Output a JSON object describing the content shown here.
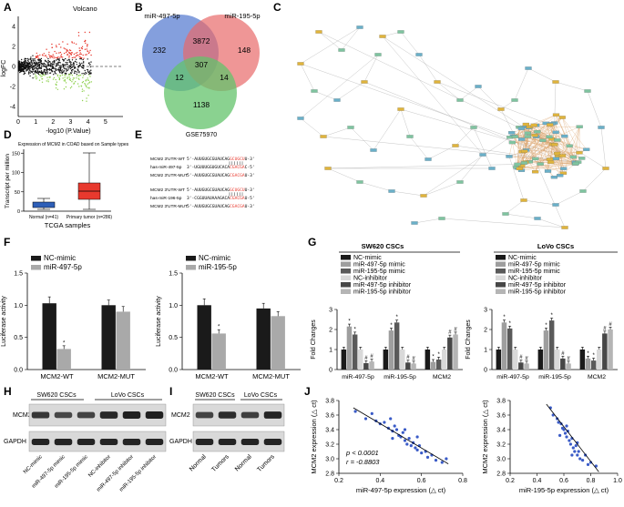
{
  "panels": {
    "A": {
      "label": "A",
      "title": "Volcano",
      "xlabel": "-log10 (P.Value)",
      "ylabel": "logFC",
      "xticks": [
        "0",
        "1",
        "2",
        "3",
        "4",
        "5"
      ],
      "yticks": [
        "-4",
        "-2",
        "0",
        "2",
        "4"
      ],
      "colors": {
        "up": "#e8392e",
        "down": "#8fd14f",
        "ns": "#111111"
      }
    },
    "B": {
      "label": "B",
      "sets": [
        "miR-497-5p",
        "miR-195-5p",
        "GSE75970"
      ],
      "counts": {
        "only_497": "232",
        "only_195": "148",
        "both_497_195": "3872",
        "all_three": "307",
        "497_gse": "12",
        "195_gse": "14",
        "only_gse": "1138"
      },
      "colors": {
        "miR-497-5p": "#5b7fd1",
        "miR-195-5p": "#e86a6a",
        "GSE75970": "#63c36b"
      }
    },
    "C": {
      "label": "C"
    },
    "D": {
      "label": "D",
      "title": "Expression of MCM2 in COAD based on Sample types",
      "ylabel": "Transcript per million",
      "xlabel": "TCGA samples",
      "yticks": [
        "0",
        "50",
        "100",
        "150"
      ],
      "groups": [
        {
          "name": "Normal (n=41)",
          "color": "#2e5fb8"
        },
        {
          "name": "Primary tumor (n=286)",
          "color": "#e8392e"
        }
      ]
    },
    "E": {
      "label": "E",
      "rows": [
        {
          "name": "MCM2 3'UTR-WT",
          "seq": "5'-AUUGUGCGUAUCAGGCUGCUU-3'",
          "hl": "GCUGCU"
        },
        {
          "name": "has-miR-497-5p",
          "seq": "3'-UGUUUGGUGUCACACGACGAC-5'",
          "hl": "CGACGA"
        },
        {
          "name": "MCM2 3'UTR-MUT",
          "seq": "5'-AUUGUGCGUAUCAGCGACGAU-3'",
          "hl": "CGACGA"
        },
        {
          "name": "MCM2 3'UTR-WT",
          "seq": "5'-AUUGUGCGUAUCAGGCUGCUU-3'",
          "hl": "GCUGCU"
        },
        {
          "name": "has-miR-196-5p",
          "seq": "3'-CGGUUAUAAAGACACGACGAU-5'",
          "hl": "CGACGA"
        },
        {
          "name": "MCM2 3'UTR-MUT",
          "seq": "5'-AUUGUGCGUAUCAGCGACGAU-3'",
          "hl": "CGACGA"
        }
      ]
    },
    "F": {
      "label": "F",
      "ylabel": "Luciferase activity",
      "yticks": [
        "0.0",
        "0.5",
        "1.0",
        "1.5"
      ]
    },
    "G": {
      "label": "G",
      "ylabel": "Fold Changes",
      "yticks": [
        "0",
        "1",
        "2",
        "3"
      ],
      "left_title": "SW620 CSCs",
      "right_title": "LoVo CSCs"
    },
    "H": {
      "label": "H",
      "group1": "SW620 CSCs",
      "group2": "LoVo CSCs",
      "rows": [
        "MCM2",
        "GAPDH"
      ],
      "lanes": [
        "NC-mimic",
        "miR-497-5p mimic",
        "miR-195-5p mimic",
        "NC-inhibitor",
        "miR-497-5p inhibitor",
        "miR-195-5p inhibitor"
      ]
    },
    "I": {
      "label": "I",
      "group1": "SW620 CSCs",
      "group2": "LoVo CSCs",
      "rows": [
        "MCM2",
        "GAPDH"
      ],
      "lanes": [
        "Normal",
        "Tumors",
        "Normal",
        "Tumors"
      ]
    },
    "J": {
      "label": "J"
    }
  },
  "chart_data": [
    {
      "id": "F-left",
      "type": "bar",
      "categories": [
        "MCM2-WT",
        "MCM2-MUT"
      ],
      "series": [
        {
          "name": "NC-mimic",
          "values": [
            1.03,
            1.0
          ],
          "err": [
            0.1,
            0.08
          ],
          "color": "#1a1a1a"
        },
        {
          "name": "miR-497-5p",
          "values": [
            0.32,
            0.9
          ],
          "err": [
            0.05,
            0.08
          ],
          "color": "#a9a9a9"
        }
      ],
      "ylim": [
        0,
        1.5
      ],
      "stars": [
        "*",
        ""
      ]
    },
    {
      "id": "F-right",
      "type": "bar",
      "categories": [
        "MCM2-WT",
        "MCM2-MUT"
      ],
      "series": [
        {
          "name": "NC-mimic",
          "values": [
            1.0,
            0.95
          ],
          "err": [
            0.1,
            0.08
          ],
          "color": "#1a1a1a"
        },
        {
          "name": "miR-195-5p",
          "values": [
            0.56,
            0.83
          ],
          "err": [
            0.06,
            0.07
          ],
          "color": "#a9a9a9"
        }
      ],
      "ylim": [
        0,
        1.5
      ],
      "stars": [
        "*",
        ""
      ]
    },
    {
      "id": "G-SW620",
      "type": "bar",
      "categories": [
        "miR-497-5p",
        "miR-195-5p",
        "MCM2"
      ],
      "series": [
        {
          "name": "NC-mimic",
          "values": [
            1.0,
            1.0,
            1.0
          ],
          "color": "#1a1a1a",
          "mark": [
            "",
            "",
            ""
          ]
        },
        {
          "name": "miR-497-5p mimic",
          "values": [
            2.15,
            1.95,
            0.38
          ],
          "color": "#9e9e9e",
          "mark": [
            "*",
            "*",
            "*"
          ]
        },
        {
          "name": "miR-195-5p mimic",
          "values": [
            1.75,
            2.35,
            0.5
          ],
          "color": "#5a5a5a",
          "mark": [
            "*",
            "*",
            "*"
          ]
        },
        {
          "name": "NC-inhibitor",
          "values": [
            1.0,
            1.0,
            1.0
          ],
          "color": "#d9d9d9",
          "mark": [
            "",
            "",
            ""
          ]
        },
        {
          "name": "miR-497-5p inhibitor",
          "values": [
            0.32,
            0.35,
            1.6
          ],
          "color": "#474747",
          "mark": [
            "#",
            "#",
            "#"
          ]
        },
        {
          "name": "miR-195-5p inhibitor",
          "values": [
            0.4,
            0.3,
            1.75
          ],
          "color": "#b5b5b5",
          "mark": [
            "#",
            "#",
            "#"
          ]
        }
      ],
      "ylim": [
        0,
        3
      ]
    },
    {
      "id": "G-LoVo",
      "type": "bar",
      "categories": [
        "miR-497-5p",
        "miR-195-5p",
        "MCM2"
      ],
      "series": [
        {
          "name": "NC-mimic",
          "values": [
            1.0,
            1.0,
            1.0
          ],
          "color": "#1a1a1a",
          "mark": [
            "",
            "",
            ""
          ]
        },
        {
          "name": "miR-497-5p mimic",
          "values": [
            2.35,
            1.95,
            0.55
          ],
          "color": "#9e9e9e",
          "mark": [
            "*",
            "*",
            "*"
          ]
        },
        {
          "name": "miR-195-5p mimic",
          "values": [
            2.05,
            2.45,
            0.45
          ],
          "color": "#5a5a5a",
          "mark": [
            "*",
            "*",
            "*"
          ]
        },
        {
          "name": "NC-inhibitor",
          "values": [
            1.0,
            1.0,
            1.0
          ],
          "color": "#d9d9d9",
          "mark": [
            "",
            "",
            ""
          ]
        },
        {
          "name": "miR-497-5p inhibitor",
          "values": [
            0.35,
            0.55,
            1.8
          ],
          "color": "#474747",
          "mark": [
            "#",
            "#",
            "#"
          ]
        },
        {
          "name": "miR-195-5p inhibitor",
          "values": [
            0.3,
            0.3,
            2.0
          ],
          "color": "#b5b5b5",
          "mark": [
            "#",
            "#",
            "#"
          ]
        }
      ],
      "ylim": [
        0,
        3
      ]
    },
    {
      "id": "J-left",
      "type": "scatter",
      "xlabel": "miR-497-5p expression (△ ct)",
      "ylabel": "MCM2 expression (△ ct)",
      "xlim": [
        0.2,
        0.8
      ],
      "ylim": [
        2.8,
        3.8
      ],
      "xticks": [
        "0.2",
        "0.4",
        "0.6",
        "0.8"
      ],
      "yticks": [
        "2.8",
        "3.0",
        "3.2",
        "3.4",
        "3.6",
        "3.8"
      ],
      "stat_p": "p < 0.0001",
      "stat_r": "r = -0.8803",
      "fit": [
        [
          0.27,
          3.7
        ],
        [
          0.73,
          2.93
        ]
      ],
      "points": [
        [
          0.28,
          3.65
        ],
        [
          0.33,
          3.55
        ],
        [
          0.36,
          3.62
        ],
        [
          0.38,
          3.52
        ],
        [
          0.4,
          3.48
        ],
        [
          0.42,
          3.5
        ],
        [
          0.44,
          3.42
        ],
        [
          0.45,
          3.55
        ],
        [
          0.46,
          3.38
        ],
        [
          0.47,
          3.45
        ],
        [
          0.48,
          3.4
        ],
        [
          0.49,
          3.32
        ],
        [
          0.5,
          3.3
        ],
        [
          0.51,
          3.36
        ],
        [
          0.52,
          3.25
        ],
        [
          0.53,
          3.2
        ],
        [
          0.54,
          3.28
        ],
        [
          0.55,
          3.18
        ],
        [
          0.56,
          3.22
        ],
        [
          0.57,
          3.15
        ],
        [
          0.58,
          3.12
        ],
        [
          0.59,
          3.18
        ],
        [
          0.6,
          3.08
        ],
        [
          0.62,
          3.1
        ],
        [
          0.63,
          3.02
        ],
        [
          0.65,
          3.05
        ],
        [
          0.67,
          2.98
        ],
        [
          0.7,
          2.95
        ],
        [
          0.72,
          3.0
        ],
        [
          0.46,
          3.28
        ],
        [
          0.52,
          3.4
        ],
        [
          0.58,
          3.3
        ]
      ]
    },
    {
      "id": "J-right",
      "type": "scatter",
      "xlabel": "miR-195-5p expression (△ ct)",
      "ylabel": "MCM2 expression (△ ct)",
      "xlim": [
        0.2,
        1.0
      ],
      "ylim": [
        2.8,
        3.8
      ],
      "xticks": [
        "0.2",
        "0.4",
        "0.6",
        "0.8",
        "1.0"
      ],
      "yticks": [
        "2.8",
        "3.0",
        "3.2",
        "3.4",
        "3.6",
        "3.8"
      ],
      "fit": [
        [
          0.47,
          3.75
        ],
        [
          0.86,
          2.82
        ]
      ],
      "points": [
        [
          0.5,
          3.7
        ],
        [
          0.52,
          3.6
        ],
        [
          0.55,
          3.55
        ],
        [
          0.56,
          3.5
        ],
        [
          0.58,
          3.48
        ],
        [
          0.59,
          3.42
        ],
        [
          0.6,
          3.4
        ],
        [
          0.61,
          3.35
        ],
        [
          0.62,
          3.3
        ],
        [
          0.63,
          3.38
        ],
        [
          0.64,
          3.25
        ],
        [
          0.65,
          3.2
        ],
        [
          0.66,
          3.28
        ],
        [
          0.67,
          3.15
        ],
        [
          0.68,
          3.1
        ],
        [
          0.69,
          3.18
        ],
        [
          0.7,
          3.05
        ],
        [
          0.71,
          3.1
        ],
        [
          0.72,
          3.0
        ],
        [
          0.74,
          2.98
        ],
        [
          0.76,
          3.05
        ],
        [
          0.78,
          2.92
        ],
        [
          0.8,
          2.95
        ],
        [
          0.84,
          2.9
        ],
        [
          0.57,
          3.32
        ],
        [
          0.62,
          3.45
        ],
        [
          0.66,
          3.05
        ],
        [
          0.7,
          3.22
        ]
      ]
    }
  ]
}
